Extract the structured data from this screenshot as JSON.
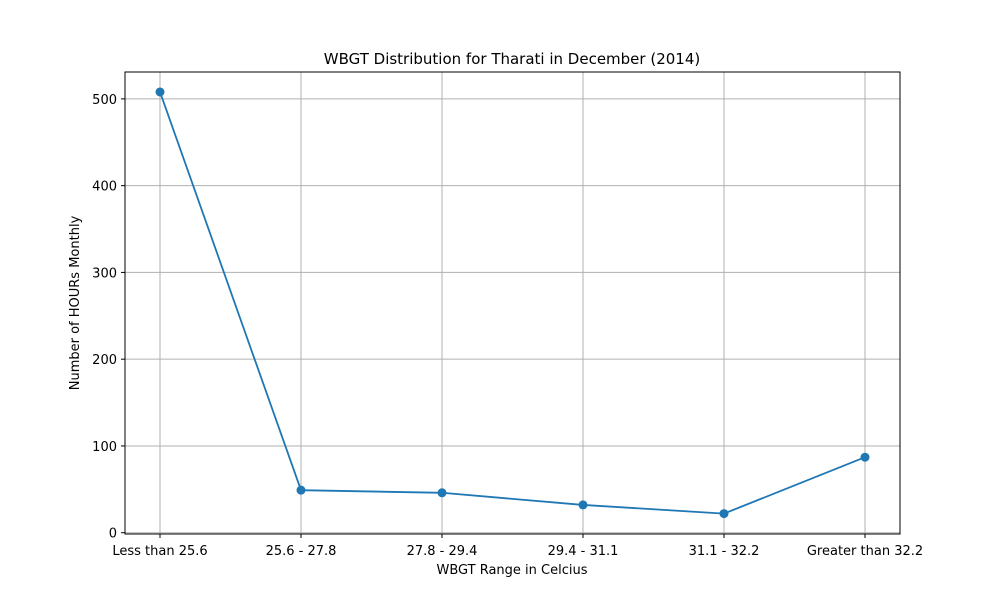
{
  "chart_data": {
    "type": "line",
    "title": "WBGT Distribution for Tharati in December (2014)",
    "xlabel": "WBGT Range in Celcius",
    "ylabel": "Number of HOURs Monthly",
    "categories": [
      "Less than 25.6",
      "25.6 - 27.8",
      "27.8 - 29.4",
      "29.4 - 31.1",
      "31.1 - 32.2",
      "Greater than 32.2"
    ],
    "series": [
      {
        "values": [
          508,
          49,
          46,
          32,
          22,
          87
        ],
        "color": "#1f77b4",
        "marker": "circle"
      }
    ],
    "ylim": [
      -1.5,
      531
    ],
    "yticks": [
      0,
      100,
      200,
      300,
      400,
      500
    ],
    "grid": true
  }
}
